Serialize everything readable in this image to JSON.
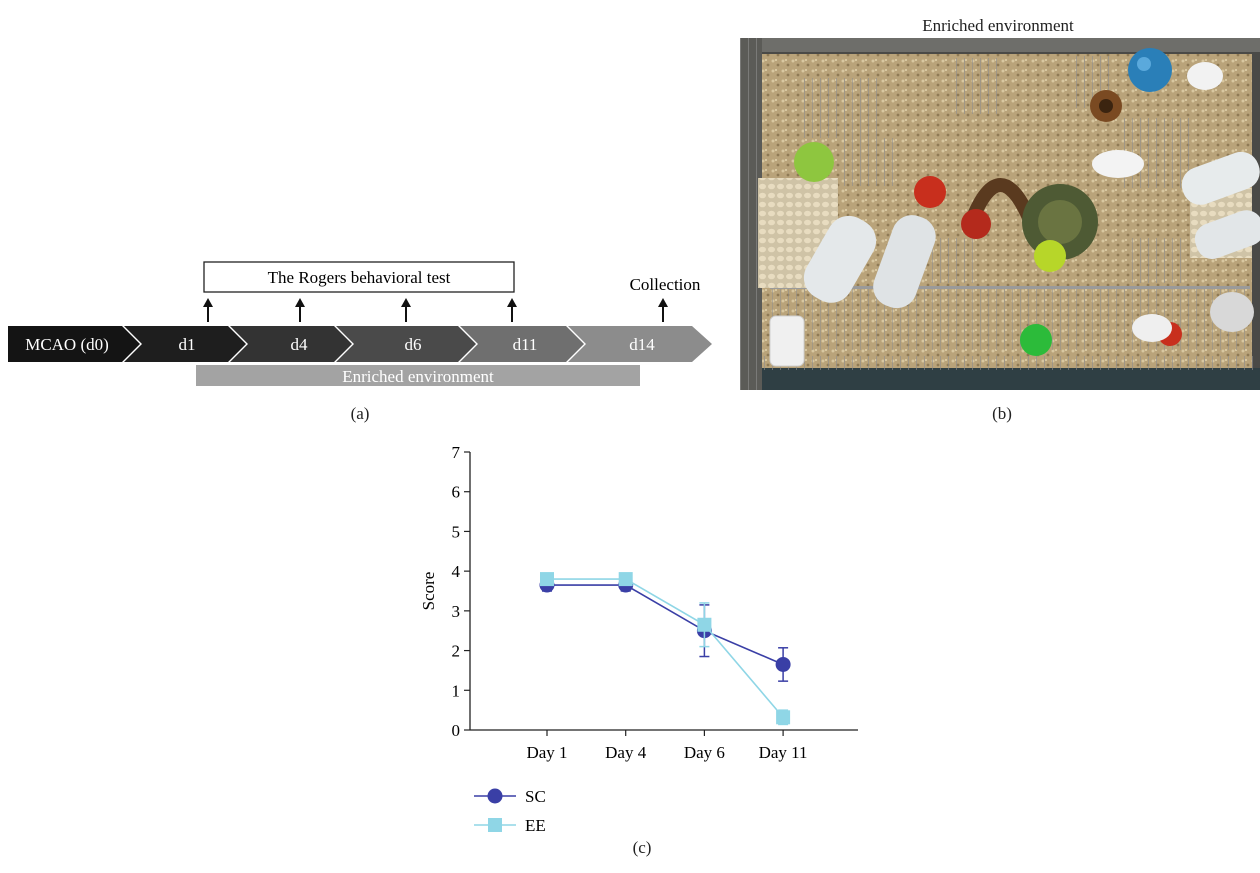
{
  "panel_a": {
    "label": "(a)",
    "test_box_label": "The Rogers behavioral test",
    "collection_label": "Collection",
    "environment_bar_label": "Enriched environment",
    "steps": [
      {
        "label": "MCAO (d0)",
        "color": "#141414"
      },
      {
        "label": "d1",
        "color": "#1e1e1e"
      },
      {
        "label": "d4",
        "color": "#333333"
      },
      {
        "label": "d6",
        "color": "#4a4a4a"
      },
      {
        "label": "d11",
        "color": "#6f6f6f"
      },
      {
        "label": "d14",
        "color": "#8c8c8c"
      }
    ],
    "environment_bar_color": "#a3a3a3"
  },
  "panel_b": {
    "title": "Enriched environment",
    "label": "(b)"
  },
  "panel_c": {
    "label": "(c)"
  },
  "chart_data": {
    "type": "line",
    "categories": [
      "Day 1",
      "Day 4",
      "Day 6",
      "Day 11"
    ],
    "ylabel": "Score",
    "xlabel": "",
    "ylim": [
      0,
      7
    ],
    "yticks": [
      "0",
      "1",
      "2",
      "3",
      "4",
      "5",
      "6",
      "7"
    ],
    "legend_position": "bottom-left",
    "series": [
      {
        "name": "SC",
        "marker": "circle",
        "color": "#3a3fa6",
        "values": [
          3.65,
          3.65,
          2.5,
          1.65
        ],
        "error": [
          0.15,
          0.15,
          0.65,
          0.42
        ]
      },
      {
        "name": "EE",
        "marker": "square",
        "color": "#8fd6e6",
        "values": [
          3.8,
          3.8,
          2.65,
          0.32
        ],
        "error": [
          0.08,
          0.08,
          0.55,
          0.18
        ]
      }
    ]
  }
}
